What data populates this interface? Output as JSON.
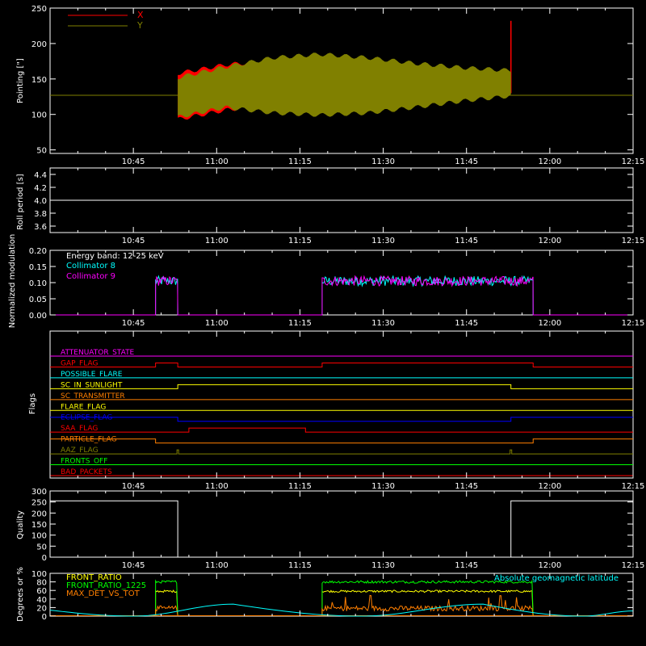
{
  "time_ticks": [
    "10:45",
    "11:00",
    "11:15",
    "11:30",
    "11:45",
    "12:00",
    "12:15"
  ],
  "chart_data": [
    {
      "id": "pointing",
      "type": "line",
      "ylabel": "Pointing [\"]",
      "ylim": [
        45,
        250
      ],
      "yticks": [
        "50",
        "100",
        "150",
        "200",
        "250"
      ],
      "x_range": [
        "10:30",
        "12:15"
      ],
      "legend": [
        {
          "name": "X",
          "color": "#ff0000"
        },
        {
          "name": "Y",
          "color": "#808000"
        }
      ],
      "series": [
        {
          "name": "X",
          "color": "#ff0000",
          "t_start": "10:53",
          "t_end": "11:53",
          "envelope_min": [
            93,
            106,
            115,
            118,
            121,
            124,
            127,
            130
          ],
          "envelope_max": [
            158,
            170,
            176,
            177,
            174,
            168,
            164,
            160
          ],
          "spike_max": 232,
          "baseline": 127
        },
        {
          "name": "Y",
          "color": "#808000",
          "t_start": "10:53",
          "t_end": "11:53",
          "envelope_min": [
            96,
            110,
            102,
            99,
            102,
            110,
            119,
            126
          ],
          "envelope_max": [
            152,
            167,
            180,
            185,
            180,
            172,
            166,
            162
          ],
          "baseline": 127
        }
      ]
    },
    {
      "id": "roll",
      "type": "line",
      "ylabel": "Roll period [s]",
      "ylim": [
        3.5,
        4.5
      ],
      "yticks": [
        "3.6",
        "3.8",
        "4.0",
        "4.2",
        "4.4"
      ],
      "x_range": [
        "10:30",
        "12:15"
      ],
      "series": [
        {
          "name": "",
          "color": "#ffffff",
          "value": 4.0
        }
      ]
    },
    {
      "id": "modulation",
      "type": "line",
      "ylabel": "Normalized modulation",
      "ylim": [
        0,
        0.2
      ],
      "yticks": [
        "0.00",
        "0.05",
        "0.10",
        "0.15",
        "0.20"
      ],
      "x_range": [
        "10:30",
        "12:15"
      ],
      "legend": [
        {
          "name": "Energy band: 12-25 keV",
          "color": "#ffffff"
        },
        {
          "name": "Collimator 8",
          "color": "#00ffff"
        },
        {
          "name": "Collimator 9",
          "color": "#ff00ff"
        }
      ],
      "active_intervals": [
        [
          "10:49",
          "10:53"
        ],
        [
          "11:19",
          "11:57"
        ]
      ],
      "series": [
        {
          "name": "Collimator 8",
          "color": "#00ffff",
          "mean": 0.105,
          "spread": 0.015
        },
        {
          "name": "Collimator 9",
          "color": "#ff00ff",
          "mean": 0.105,
          "spread": 0.015
        }
      ]
    },
    {
      "id": "flags",
      "type": "line",
      "ylabel": "Flags",
      "x_range": [
        "10:30",
        "12:15"
      ],
      "flags": [
        {
          "name": "ATTENUATOR_STATE",
          "color": "#ff00ff",
          "segments": []
        },
        {
          "name": "GAP_FLAG",
          "color": "#ff0000",
          "segments": [
            [
              "10:49",
              "10:53"
            ],
            [
              "11:19",
              "11:57"
            ]
          ]
        },
        {
          "name": "POSSIBLE_FLARE",
          "color": "#00ffff",
          "segments": []
        },
        {
          "name": "SC_IN_SUNLIGHT",
          "color": "#ffff00",
          "segments": [
            [
              "10:53",
              "11:53"
            ]
          ]
        },
        {
          "name": "SC_TRANSMITTER",
          "color": "#ff7f00",
          "segments": []
        },
        {
          "name": "FLARE_FLAG",
          "color": "#ffff00",
          "segments": []
        },
        {
          "name": "ECLIPSE_FLAG",
          "color": "#0000ff",
          "segments": [
            [
              "10:30",
              "10:53"
            ],
            [
              "11:53",
              "12:15"
            ]
          ]
        },
        {
          "name": "SAA_FLAG",
          "color": "#ff0000",
          "segments": [
            [
              "10:55",
              "11:16"
            ]
          ]
        },
        {
          "name": "PARTICLE_FLAG",
          "color": "#ff7f00",
          "segments": [
            [
              "10:30",
              "10:49"
            ],
            [
              "11:57",
              "12:15"
            ]
          ]
        },
        {
          "name": "AAZ_FLAG",
          "color": "#808000",
          "segments": [
            [
              "10:53",
              "10:53"
            ],
            [
              "11:53",
              "11:53"
            ]
          ]
        },
        {
          "name": "FRONTS_OFF",
          "color": "#00ff00",
          "segments": []
        },
        {
          "name": "BAD_PACKETS",
          "color": "#ff0000",
          "segments": []
        }
      ]
    },
    {
      "id": "quality",
      "type": "line",
      "ylabel": "Quality",
      "ylim": [
        0,
        300
      ],
      "yticks": [
        "0",
        "50",
        "100",
        "150",
        "200",
        "250",
        "300"
      ],
      "x_range": [
        "10:30",
        "12:15"
      ],
      "series": [
        {
          "name": "",
          "color": "#ffffff",
          "segments": [
            [
              "10:30",
              "10:53",
              255
            ],
            [
              "10:53",
              "11:53",
              0
            ],
            [
              "11:53",
              "12:15",
              255
            ]
          ]
        }
      ]
    },
    {
      "id": "ratios",
      "type": "line",
      "ylabel": "Degrees or %",
      "ylim": [
        0,
        100
      ],
      "yticks": [
        "0",
        "20",
        "40",
        "60",
        "80",
        "100"
      ],
      "x_range": [
        "10:30",
        "12:15"
      ],
      "legend": [
        {
          "name": "FRONT_RATIO",
          "color": "#ffff00"
        },
        {
          "name": "FRONT_RATIO_1225",
          "color": "#00ff00"
        },
        {
          "name": "MAX_DET_VS_TOT",
          "color": "#ff7f00"
        }
      ],
      "annotation": {
        "text": "Absolute geomagnetic latitude",
        "color": "#00ffff"
      },
      "active_intervals": [
        [
          "10:49",
          "10:53"
        ],
        [
          "11:19",
          "11:57"
        ]
      ],
      "series": [
        {
          "name": "FRONT_RATIO",
          "color": "#ffff00",
          "mean": 58
        },
        {
          "name": "FRONT_RATIO_1225",
          "color": "#00ff00",
          "mean": 80
        },
        {
          "name": "MAX_DET_VS_TOT",
          "color": "#ff7f00",
          "mean": 18
        },
        {
          "name": "Absolute geomagnetic latitude",
          "color": "#00ffff",
          "x": [
            "10:30",
            "10:45",
            "11:03",
            "11:26",
            "11:48",
            "12:06",
            "12:15"
          ],
          "y": [
            14,
            0,
            28,
            0,
            28,
            0,
            12
          ]
        }
      ]
    }
  ]
}
